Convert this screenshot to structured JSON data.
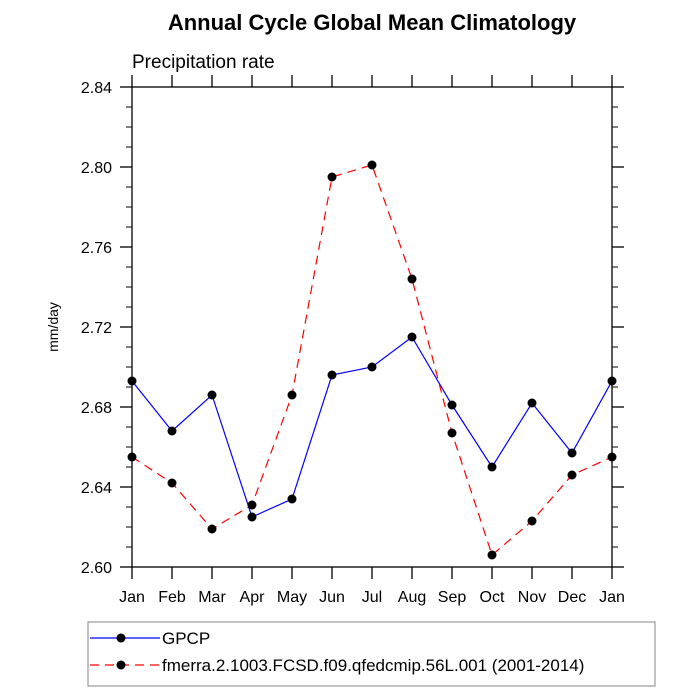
{
  "chart_data": {
    "type": "line",
    "title": "Annual Cycle Global Mean Climatology",
    "subtitle": "Precipitation rate",
    "xlabel": "",
    "ylabel": "mm/day",
    "categories": [
      "Jan",
      "Feb",
      "Mar",
      "Apr",
      "May",
      "Jun",
      "Jul",
      "Aug",
      "Sep",
      "Oct",
      "Nov",
      "Dec",
      "Jan"
    ],
    "ylim": [
      2.6,
      2.84
    ],
    "yticks": [
      "2.60",
      "2.64",
      "2.68",
      "2.72",
      "2.76",
      "2.80",
      "2.84"
    ],
    "ytick_values": [
      2.6,
      2.64,
      2.68,
      2.72,
      2.76,
      2.8,
      2.84
    ],
    "grid": false,
    "legend_position": "bottom",
    "series": [
      {
        "name": "GPCP",
        "color": "#0000ff",
        "dash": "solid",
        "marker": "circle",
        "values": [
          2.693,
          2.668,
          2.686,
          2.625,
          2.634,
          2.696,
          2.7,
          2.715,
          2.681,
          2.65,
          2.682,
          2.657,
          2.693
        ]
      },
      {
        "name": "fmerra.2.1003.FCSD.f09.qfedcmip.56L.001 (2001-2014)",
        "color": "#ff0000",
        "dash": "dashed",
        "marker": "circle",
        "values": [
          2.655,
          2.642,
          2.619,
          2.631,
          2.686,
          2.795,
          2.801,
          2.744,
          2.667,
          2.606,
          2.623,
          2.646,
          2.655
        ]
      }
    ]
  }
}
